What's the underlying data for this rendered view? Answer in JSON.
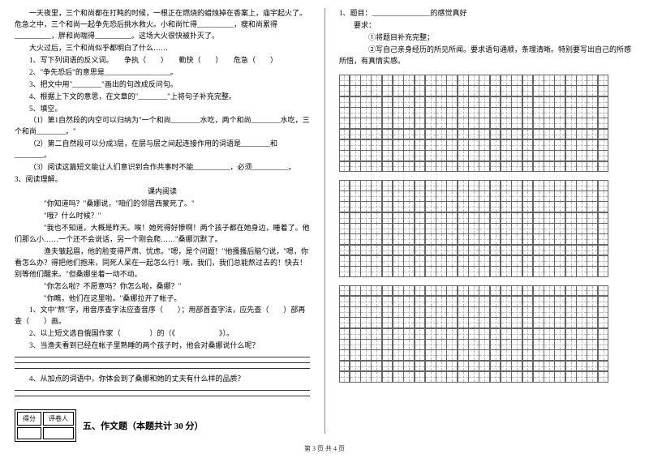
{
  "left": {
    "story": [
      "一天夜里，三个和尚都在打盹的时候，一根正在燃烧的蜡烛掉在香案上，庙宇起火了。危急之中，三个和尚一起争先恐后挑水救火。小和尚忙得__________，瘦和尚累得__________，胖和尚喘得__________。这场大火很快被扑灭了。",
      "大火过后，三个和尚似乎都明白了什么……"
    ],
    "q1": "1、写下列词语的反义词。　　争执（　　）　　勤快（　　）　　危急（　　）",
    "q2": "2、\"争先恐后\"的意思是__________________。",
    "q3": "3、把文中用\"________\"画出的句改成反问句。",
    "q4": "4、根据上下文的意思，在文章的\"________\"上将句子补充完整。",
    "q5": "5、填空。",
    "q5_1": "（1）第1自然段的内空可以归纳为\"一个和尚________水吃，两个和尚________水吃，三个和尚________。\"",
    "q5_2": "（2）第二自然段可以分成3层，在层与层之间起连接作用的词语是________和________。",
    "q5_3": "（3）阅读这篇短文能让人们意识到合作共事时不能__________，必须__________。",
    "sec3_title": "3、阅读理解。",
    "sub_title": "课内阅读",
    "reading": [
      "\"你知道吗？\"桑娜说，\"咱们的邻居西蒙死了。\"",
      "\"哦？什么时候？\"",
      "\"我也不知道，大概是昨天。唉！她死得好惨啊！两个孩子都在她身边，睡着了。他们那么小……一个还不会说话，另一个刚会爬……\"桑娜沉默了。",
      "渔夫皱起眉，他的脸变得严肃、忧虑。\"嗯，是个问题！\"他搔搔后脑勺说，\"嗯，你看怎么办？得把他们抱来，同死人呆在一起怎么行！哦，我们，我们总能熬过去的！快去！别等他们醒来。\"但桑娜坐着一动不动。",
      "\"你怎么啦？不愿意吗？你怎么啦，桑娜？\"",
      "\"你瞧，他们在这里啦。\"桑娜拉开了帐子。"
    ],
    "r_q1": "1、文中\"熬\"字，用音序查字法应查音序（　　）；用部首查字法，应先查（　　）部再查（　　）画。",
    "r_q2": "2、以上短文选自俄国作家（　　　　）的（《　　　　　　》）。",
    "r_q3": "3、当渔夫看到已经在帐子里熟睡的两个孩子时，他会对桑娜说什么呢？",
    "r_q4": "4、从加点的词语中，你体会到了桑娜和她的丈夫有什么样的品质？",
    "score_labels": [
      "得分",
      "评卷人"
    ],
    "section5": "五、作文题（本题共计 30 分）"
  },
  "right": {
    "q1": "1、题目：________________的感觉真好",
    "req_label": "要求：",
    "req1": "①将题目补充完整；",
    "req2": "②写自己亲身经历的所见所闻。要求语句通顺，条理清晰。特别要写出自己的所感所悟，有真情实感。",
    "grid": {
      "blocks": 3,
      "rows_per_block": 9,
      "cols": 25,
      "cell_size": 13.8,
      "border_color": "#666666",
      "guide_color": "#bbbbbb"
    }
  },
  "footer": "第 3 页  共 4 页",
  "colors": {
    "text": "#000000",
    "bg": "#ffffff"
  }
}
